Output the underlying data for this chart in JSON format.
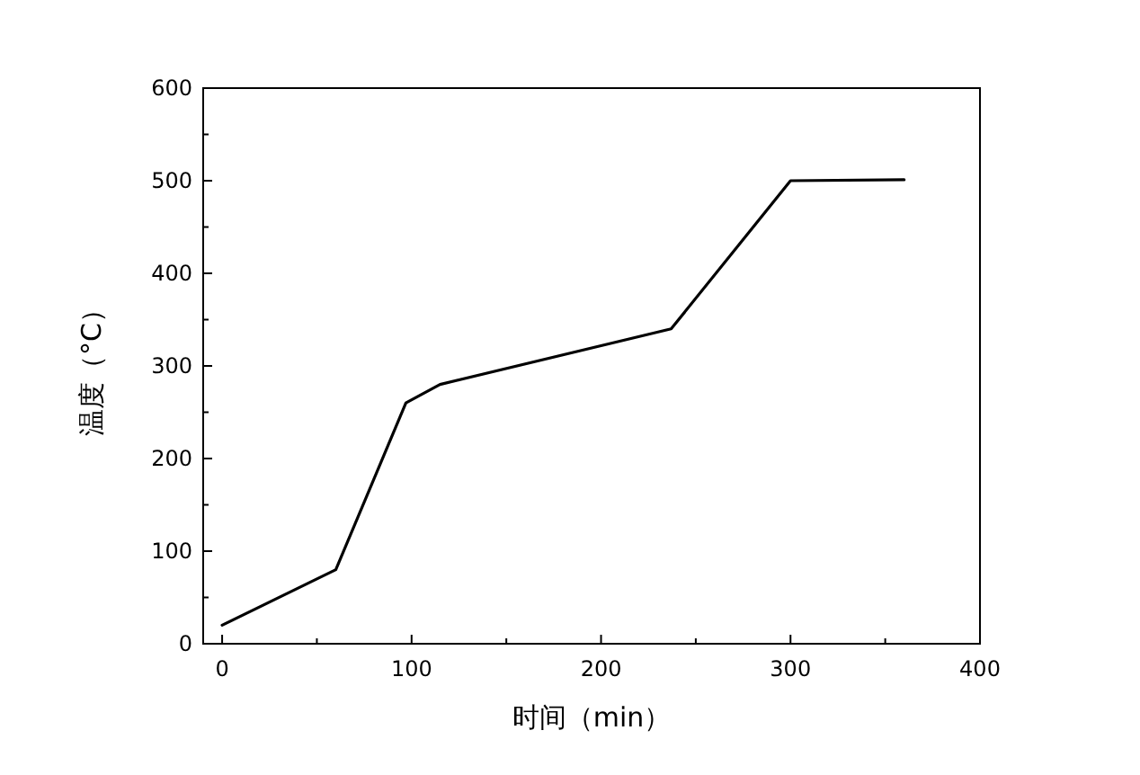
{
  "chart_data": {
    "type": "line",
    "xlabel": "时间（min）",
    "ylabel": "温度（°C）",
    "x": [
      0,
      60,
      97,
      115,
      237,
      300,
      360
    ],
    "series": [
      {
        "color": "#000000",
        "values": [
          20,
          80,
          260,
          280,
          340,
          500,
          501
        ]
      }
    ],
    "xlim": [
      -10,
      400
    ],
    "ylim": [
      0,
      600
    ],
    "xticks": [
      0,
      100,
      200,
      300,
      400
    ],
    "yticks": [
      0,
      100,
      200,
      300,
      400,
      500,
      600
    ],
    "marker": "none",
    "line_style": "solid"
  }
}
